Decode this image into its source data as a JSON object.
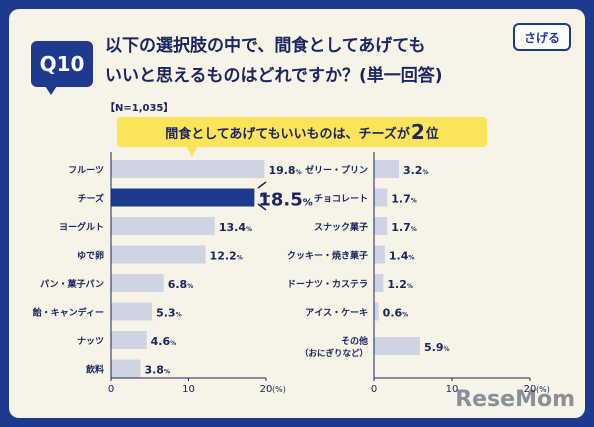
{
  "header": {
    "question_badge": "Q10",
    "title_line1": "以下の選択肢の中で、間食としてあげても",
    "title_line2": "いいと思えるものはどれですか？(単一回答)",
    "sample_note": "【N=1,035】"
  },
  "logo_text": "さげる",
  "callout": {
    "text_before": "間食としてあげてもいいものは、チーズが",
    "rank_number": "2",
    "text_after": "位"
  },
  "watermark": "ReseMom",
  "colors": {
    "bar_default": "#cfd4e2",
    "bar_highlight": "#1d3a8f",
    "text_dark": "#1a2660",
    "accent_yellow": "#fbe45a",
    "background": "#1d3a8f",
    "card": "#f7f3e6"
  },
  "chart_data": [
    {
      "type": "bar",
      "orientation": "horizontal",
      "categories": [
        "フルーツ",
        "チーズ",
        "ヨーグルト",
        "ゆで卵",
        "パン・菓子パン",
        "飴・キャンディー",
        "ナッツ",
        "飲料"
      ],
      "values": [
        19.8,
        18.5,
        13.4,
        12.2,
        6.8,
        5.3,
        4.6,
        3.8
      ],
      "value_unit": "%",
      "highlight_category": "チーズ",
      "xlim": [
        0,
        20
      ],
      "xticks": [
        "0",
        "10",
        "20"
      ],
      "xlabel": "(%)"
    },
    {
      "type": "bar",
      "orientation": "horizontal",
      "categories": [
        "ゼリー・プリン",
        "チョコレート",
        "スナック菓子",
        "クッキー・焼き菓子",
        "ドーナツ・カステラ",
        "アイス・ケーキ",
        "その他\n（おにぎりなど）"
      ],
      "values": [
        3.2,
        1.7,
        1.7,
        1.4,
        1.2,
        0.6,
        5.9
      ],
      "value_unit": "%",
      "xlim": [
        0,
        20
      ],
      "xticks": [
        "0",
        "10",
        "20"
      ],
      "xlabel": "(%)"
    }
  ]
}
